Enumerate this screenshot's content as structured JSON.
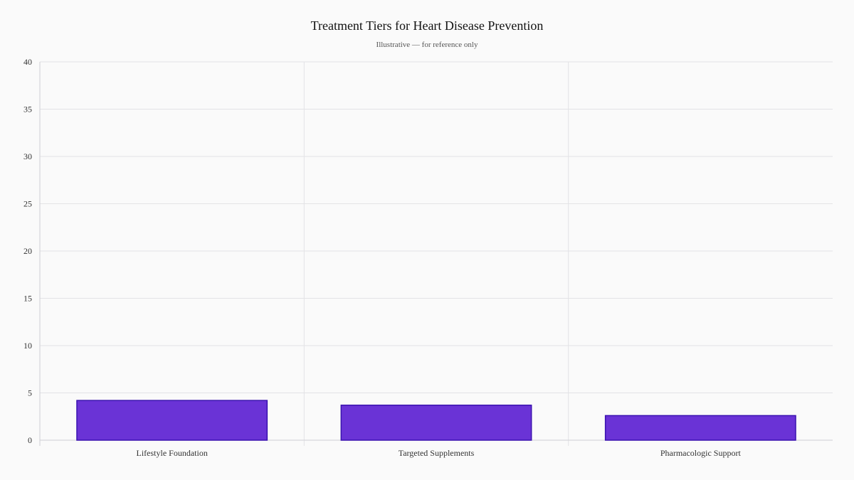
{
  "header": {
    "title": "Treatment Tiers for Heart Disease Prevention",
    "subtitle": "Illustrative — for reference only"
  },
  "colors": {
    "bar_fill": "#6a33d6",
    "bar_stroke": "#3a12b0",
    "grid": "#e3e3e6",
    "axis": "#cfcfd4",
    "background": "#fafafa"
  },
  "chart_data": {
    "type": "bar",
    "title": "Treatment Tiers for Heart Disease Prevention",
    "subtitle": "Illustrative — for reference only",
    "categories": [
      "Lifestyle Foundation",
      "Targeted Supplements",
      "Pharmacologic Support"
    ],
    "values": [
      4.2,
      3.7,
      2.6
    ],
    "xlabel": "",
    "ylabel": "",
    "ylim": [
      0,
      40
    ],
    "yticks": [
      0,
      5,
      10,
      15,
      20,
      25,
      30,
      35,
      40
    ],
    "grid": true,
    "legend": "none"
  }
}
